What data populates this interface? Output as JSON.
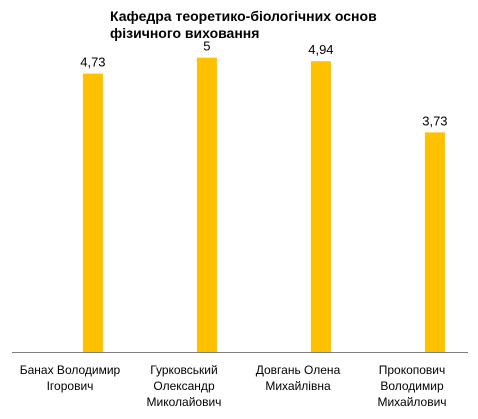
{
  "chart_data": {
    "type": "bar",
    "title_lines": [
      "Кафедра теоретико-біологічних основ",
      "фізичного виховання"
    ],
    "categories": [
      [
        "Банах Володимир",
        "Ігорович"
      ],
      [
        "Гурковський",
        "Олександр",
        "Миколайович"
      ],
      [
        "Довгань  Олена",
        "Михайлівна"
      ],
      [
        "Прокопович",
        "Володимир",
        "Михайлович"
      ]
    ],
    "values": [
      4.73,
      5,
      4.94,
      3.73
    ],
    "value_labels": [
      "4,73",
      "5",
      "4,94",
      "3,73"
    ],
    "ylim": [
      0,
      5.3
    ],
    "bar_color": "#FFC000",
    "grid": false,
    "legend": "none"
  }
}
